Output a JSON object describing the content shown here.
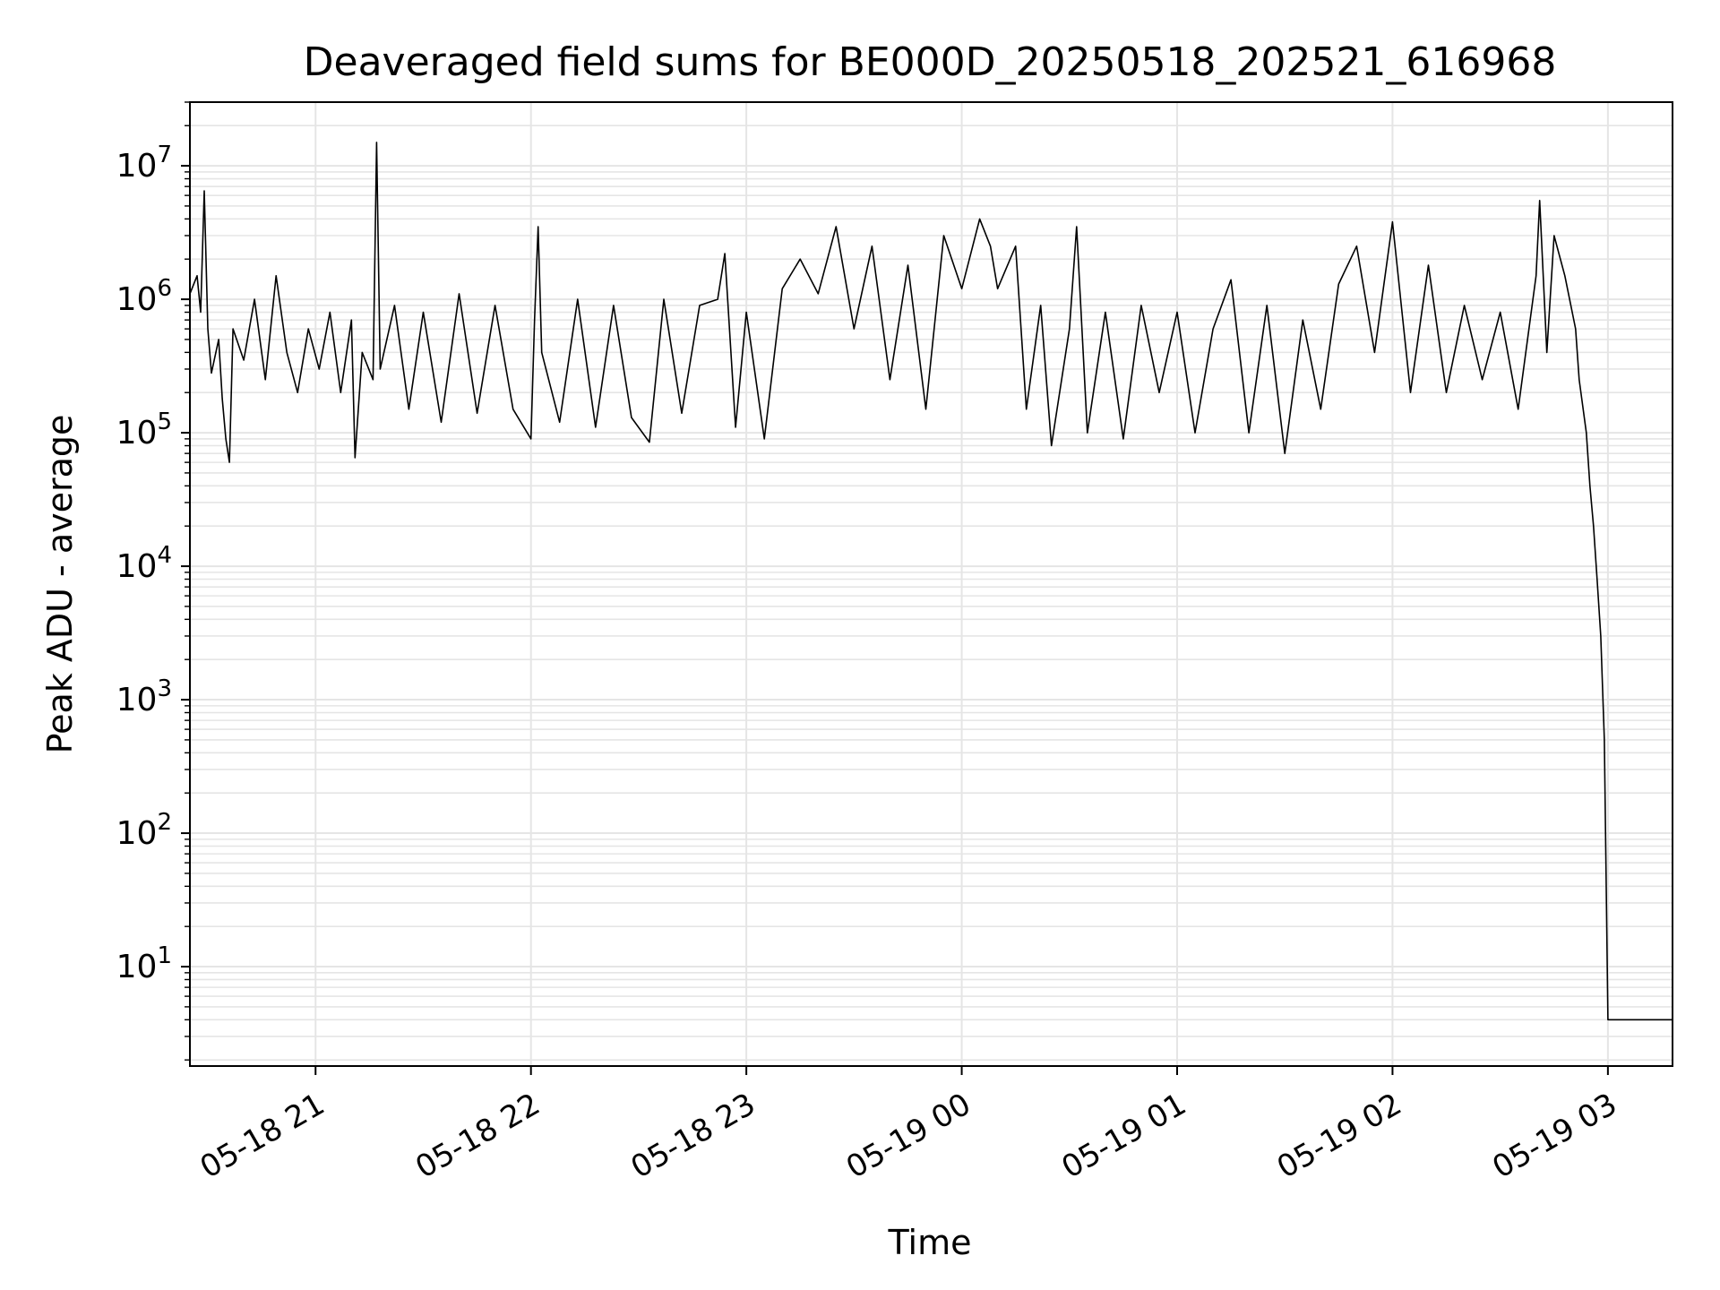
{
  "chart_data": {
    "type": "line",
    "title": "Deaveraged field sums for BE000D_20250518_202521_616968",
    "xlabel": "Time",
    "ylabel": "Peak ADU - average",
    "yscale": "log",
    "ylim": [
      1.8,
      30000000
    ],
    "xlim": [
      "2025-05-18 20:25",
      "2025-05-19 03:18"
    ],
    "grid": "major and minor",
    "line_color": "#000000",
    "grid_color": "#e5e5e5",
    "x_ticks": [
      {
        "t": "2025-05-18 21:00",
        "label": "05-18 21"
      },
      {
        "t": "2025-05-18 22:00",
        "label": "05-18 22"
      },
      {
        "t": "2025-05-18 23:00",
        "label": "05-18 23"
      },
      {
        "t": "2025-05-19 00:00",
        "label": "05-19 00"
      },
      {
        "t": "2025-05-19 01:00",
        "label": "05-19 01"
      },
      {
        "t": "2025-05-19 02:00",
        "label": "05-19 02"
      },
      {
        "t": "2025-05-19 03:00",
        "label": "05-19 03"
      }
    ],
    "y_ticks": [
      {
        "value": 10,
        "base": "10",
        "exp": "1"
      },
      {
        "value": 100,
        "base": "10",
        "exp": "2"
      },
      {
        "value": 1000,
        "base": "10",
        "exp": "3"
      },
      {
        "value": 10000,
        "base": "10",
        "exp": "4"
      },
      {
        "value": 100000,
        "base": "10",
        "exp": "5"
      },
      {
        "value": 1000000,
        "base": "10",
        "exp": "6"
      },
      {
        "value": 10000000,
        "base": "10",
        "exp": "7"
      }
    ],
    "series": [
      {
        "points": [
          [
            "2025-05-18 20:25",
            1100000
          ],
          [
            "2025-05-18 20:27",
            1500000
          ],
          [
            "2025-05-18 20:28",
            800000
          ],
          [
            "2025-05-18 20:29",
            6500000
          ],
          [
            "2025-05-18 20:30",
            600000
          ],
          [
            "2025-05-18 20:31",
            280000
          ],
          [
            "2025-05-18 20:33",
            500000
          ],
          [
            "2025-05-18 20:34",
            180000
          ],
          [
            "2025-05-18 20:35",
            90000
          ],
          [
            "2025-05-18 20:36",
            60000
          ],
          [
            "2025-05-18 20:37",
            600000
          ],
          [
            "2025-05-18 20:40",
            350000
          ],
          [
            "2025-05-18 20:43",
            1000000
          ],
          [
            "2025-05-18 20:46",
            250000
          ],
          [
            "2025-05-18 20:49",
            1500000
          ],
          [
            "2025-05-18 20:52",
            400000
          ],
          [
            "2025-05-18 20:55",
            200000
          ],
          [
            "2025-05-18 20:58",
            600000
          ],
          [
            "2025-05-18 21:01",
            300000
          ],
          [
            "2025-05-18 21:04",
            800000
          ],
          [
            "2025-05-18 21:07",
            200000
          ],
          [
            "2025-05-18 21:10",
            700000
          ],
          [
            "2025-05-18 21:11",
            65000
          ],
          [
            "2025-05-18 21:13",
            400000
          ],
          [
            "2025-05-18 21:16",
            250000
          ],
          [
            "2025-05-18 21:17",
            15000000
          ],
          [
            "2025-05-18 21:18",
            300000
          ],
          [
            "2025-05-18 21:22",
            900000
          ],
          [
            "2025-05-18 21:26",
            150000
          ],
          [
            "2025-05-18 21:30",
            800000
          ],
          [
            "2025-05-18 21:35",
            120000
          ],
          [
            "2025-05-18 21:40",
            1100000
          ],
          [
            "2025-05-18 21:45",
            140000
          ],
          [
            "2025-05-18 21:50",
            900000
          ],
          [
            "2025-05-18 21:55",
            150000
          ],
          [
            "2025-05-18 22:00",
            90000
          ],
          [
            "2025-05-18 22:01",
            700000
          ],
          [
            "2025-05-18 22:02",
            3500000
          ],
          [
            "2025-05-18 22:03",
            400000
          ],
          [
            "2025-05-18 22:08",
            120000
          ],
          [
            "2025-05-18 22:13",
            1000000
          ],
          [
            "2025-05-18 22:18",
            110000
          ],
          [
            "2025-05-18 22:23",
            900000
          ],
          [
            "2025-05-18 22:28",
            130000
          ],
          [
            "2025-05-18 22:33",
            85000
          ],
          [
            "2025-05-18 22:37",
            1000000
          ],
          [
            "2025-05-18 22:42",
            140000
          ],
          [
            "2025-05-18 22:47",
            900000
          ],
          [
            "2025-05-18 22:52",
            1000000
          ],
          [
            "2025-05-18 22:54",
            2200000
          ],
          [
            "2025-05-18 22:57",
            110000
          ],
          [
            "2025-05-18 23:00",
            800000
          ],
          [
            "2025-05-18 23:05",
            90000
          ],
          [
            "2025-05-18 23:10",
            1200000
          ],
          [
            "2025-05-18 23:15",
            2000000
          ],
          [
            "2025-05-18 23:20",
            1100000
          ],
          [
            "2025-05-18 23:25",
            3500000
          ],
          [
            "2025-05-18 23:30",
            600000
          ],
          [
            "2025-05-18 23:35",
            2500000
          ],
          [
            "2025-05-18 23:40",
            250000
          ],
          [
            "2025-05-18 23:45",
            1800000
          ],
          [
            "2025-05-18 23:50",
            150000
          ],
          [
            "2025-05-18 23:55",
            3000000
          ],
          [
            "2025-05-19 00:00",
            1200000
          ],
          [
            "2025-05-19 00:05",
            4000000
          ],
          [
            "2025-05-19 00:08",
            2500000
          ],
          [
            "2025-05-19 00:10",
            1200000
          ],
          [
            "2025-05-19 00:15",
            2500000
          ],
          [
            "2025-05-19 00:18",
            150000
          ],
          [
            "2025-05-19 00:22",
            900000
          ],
          [
            "2025-05-19 00:25",
            80000
          ],
          [
            "2025-05-19 00:30",
            600000
          ],
          [
            "2025-05-19 00:32",
            3500000
          ],
          [
            "2025-05-19 00:35",
            100000
          ],
          [
            "2025-05-19 00:40",
            800000
          ],
          [
            "2025-05-19 00:45",
            90000
          ],
          [
            "2025-05-19 00:50",
            900000
          ],
          [
            "2025-05-19 00:55",
            200000
          ],
          [
            "2025-05-19 01:00",
            800000
          ],
          [
            "2025-05-19 01:05",
            100000
          ],
          [
            "2025-05-19 01:10",
            600000
          ],
          [
            "2025-05-19 01:15",
            1400000
          ],
          [
            "2025-05-19 01:20",
            100000
          ],
          [
            "2025-05-19 01:25",
            900000
          ],
          [
            "2025-05-19 01:30",
            70000
          ],
          [
            "2025-05-19 01:35",
            700000
          ],
          [
            "2025-05-19 01:40",
            150000
          ],
          [
            "2025-05-19 01:45",
            1300000
          ],
          [
            "2025-05-19 01:50",
            2500000
          ],
          [
            "2025-05-19 01:55",
            400000
          ],
          [
            "2025-05-19 02:00",
            3800000
          ],
          [
            "2025-05-19 02:05",
            200000
          ],
          [
            "2025-05-19 02:10",
            1800000
          ],
          [
            "2025-05-19 02:15",
            200000
          ],
          [
            "2025-05-19 02:20",
            900000
          ],
          [
            "2025-05-19 02:25",
            250000
          ],
          [
            "2025-05-19 02:30",
            800000
          ],
          [
            "2025-05-19 02:35",
            150000
          ],
          [
            "2025-05-19 02:40",
            1500000
          ],
          [
            "2025-05-19 02:41",
            5500000
          ],
          [
            "2025-05-19 02:43",
            400000
          ],
          [
            "2025-05-19 02:45",
            3000000
          ],
          [
            "2025-05-19 02:48",
            1500000
          ],
          [
            "2025-05-19 02:51",
            600000
          ],
          [
            "2025-05-19 02:52",
            250000
          ],
          [
            "2025-05-19 02:54",
            100000
          ],
          [
            "2025-05-19 02:55",
            40000
          ],
          [
            "2025-05-19 02:56",
            20000
          ],
          [
            "2025-05-19 02:57",
            8000
          ],
          [
            "2025-05-19 02:58",
            3000
          ],
          [
            "2025-05-19 02:59",
            500
          ],
          [
            "2025-05-19 03:00",
            4
          ],
          [
            "2025-05-19 03:18",
            4
          ]
        ]
      }
    ]
  }
}
